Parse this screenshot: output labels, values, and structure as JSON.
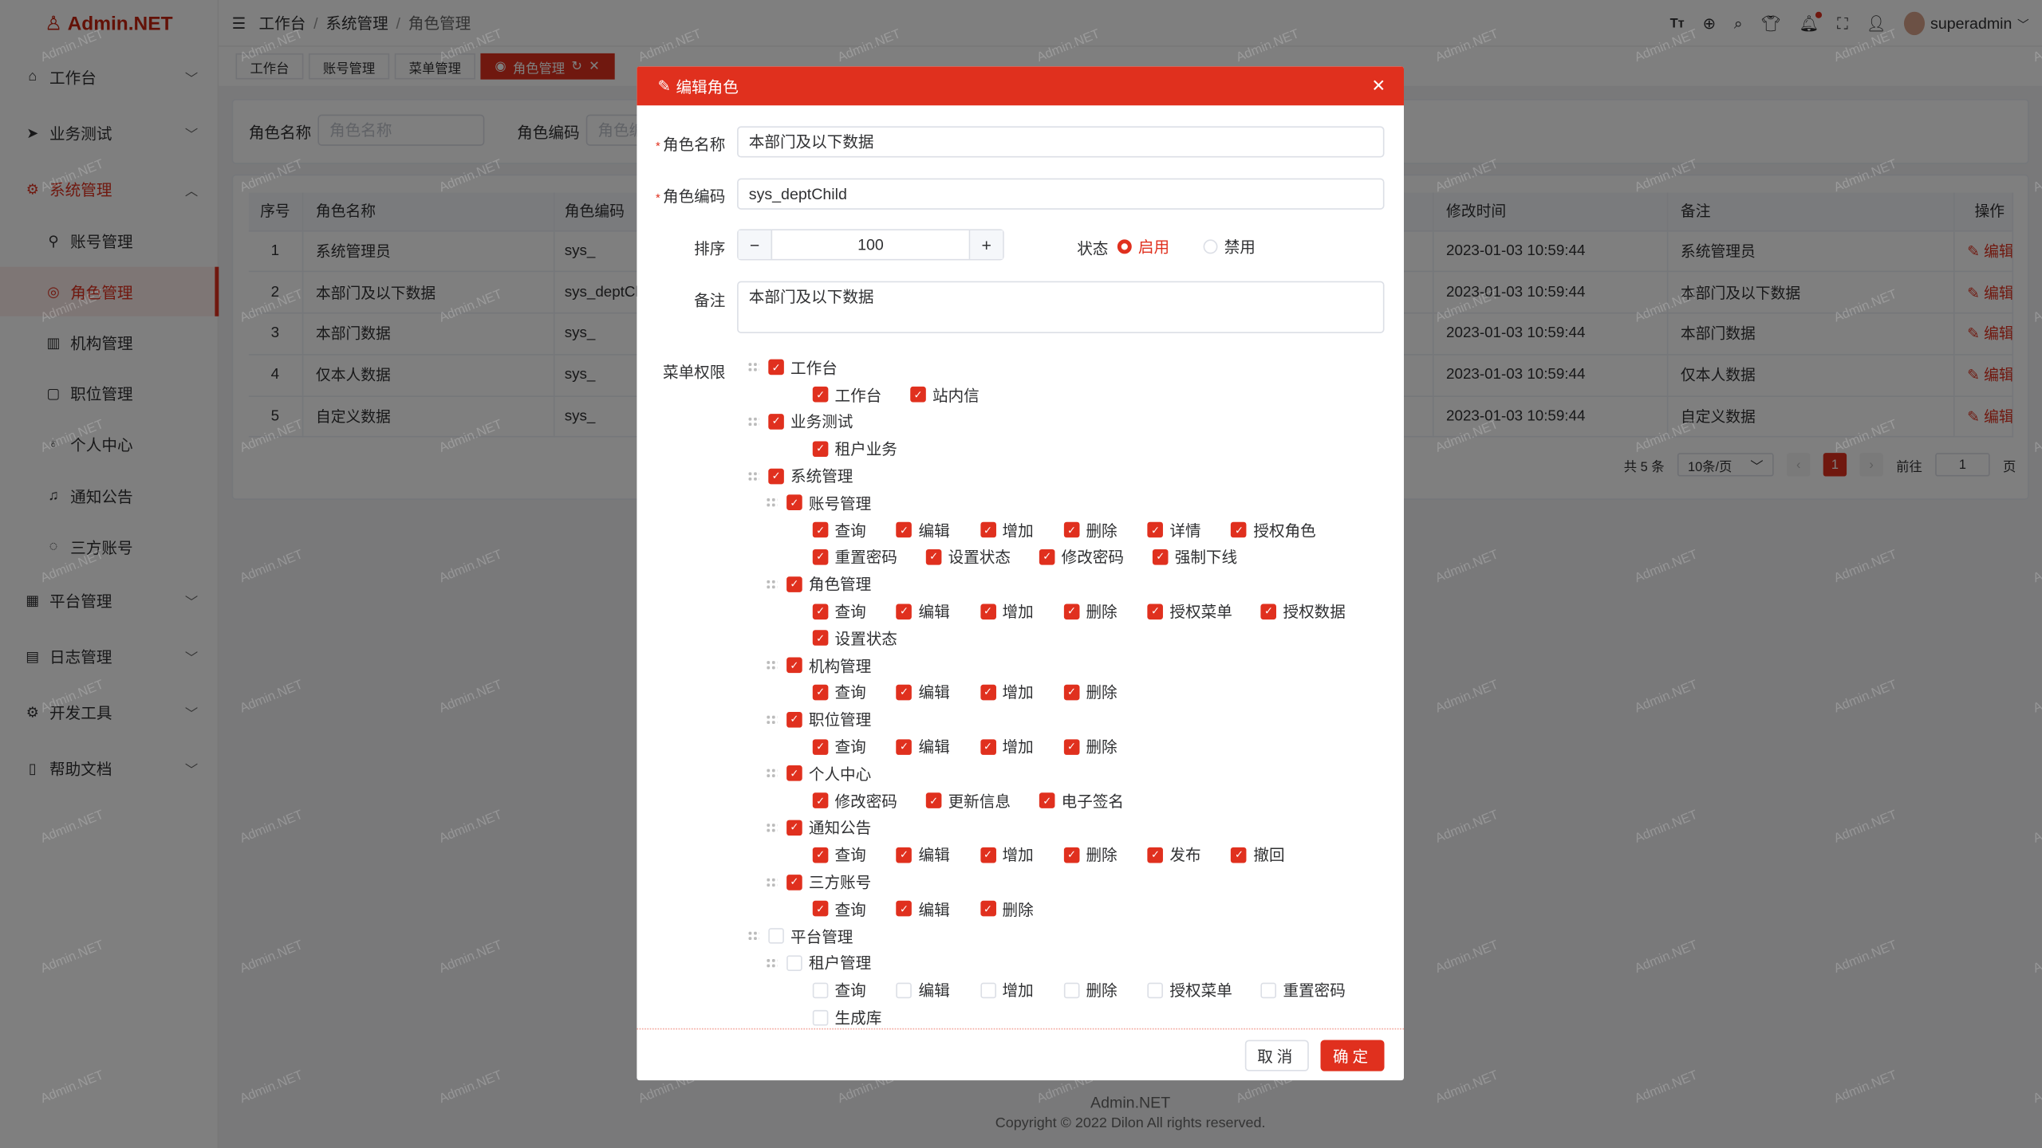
{
  "watermark": "Admin.NET",
  "colors": {
    "accent": "#e0301e"
  },
  "app": {
    "logo_text": "Admin.NET",
    "user": "superadmin"
  },
  "sidebar": {
    "items": [
      {
        "label": "工作台",
        "icon": "home-icon"
      },
      {
        "label": "业务测试",
        "icon": "send-icon"
      },
      {
        "label": "系统管理",
        "icon": "gear-icon",
        "expanded": true
      }
    ],
    "children": [
      "账号管理",
      "角色管理",
      "机构管理",
      "职位管理",
      "个人中心",
      "通知公告",
      "三方账号"
    ],
    "bottom": [
      "平台管理",
      "日志管理",
      "开发工具",
      "帮助文档"
    ]
  },
  "breadcrumb": [
    "工作台",
    "系统管理",
    "角色管理"
  ],
  "header_icons": [
    "font-size-icon",
    "language-icon",
    "search-icon",
    "skin-icon",
    "bell-icon",
    "fullscreen-icon",
    "user-icon"
  ],
  "tabs": [
    "工作台",
    "账号管理",
    "菜单管理",
    "角色管理"
  ],
  "search": {
    "name_label": "角色名称",
    "name_placeholder": "角色名称",
    "code_label": "角色编码",
    "code_placeholder": "角色编码"
  },
  "table": {
    "headers": [
      "序号",
      "角色名称",
      "角色编码",
      "修改时间",
      "备注",
      "操作"
    ],
    "rows": [
      [
        "1",
        "系统管理员",
        "sys_",
        "2023-01-03 10:59:44",
        "系统管理员"
      ],
      [
        "2",
        "本部门及以下数据",
        "sys_deptChild",
        "2023-01-03 10:59:44",
        "本部门及以下数据"
      ],
      [
        "3",
        "本部门数据",
        "sys_",
        "2023-01-03 10:59:44",
        "本部门数据"
      ],
      [
        "4",
        "仅本人数据",
        "sys_",
        "2023-01-03 10:59:44",
        "仅本人数据"
      ],
      [
        "5",
        "自定义数据",
        "sys_",
        "2023-01-03 10:59:44",
        "自定义数据"
      ]
    ],
    "edit_label": "编辑",
    "more_label": "···"
  },
  "pager": {
    "total": "共 5 条",
    "size": "10条/页",
    "current": "1",
    "goto": "前往",
    "goto_value": "1",
    "page_suffix": "页"
  },
  "footer": {
    "brand": "Admin.NET",
    "copyright": "Copyright © 2022 Dilon All rights reserved."
  },
  "dialog": {
    "title": "编辑角色",
    "name_label": "角色名称",
    "name_value": "本部门及以下数据",
    "code_label": "角色编码",
    "code_value": "sys_deptChild",
    "order_label": "排序",
    "order_value": "100",
    "status_label": "状态",
    "status_options": [
      "启用",
      "禁用"
    ],
    "status_selected": "启用",
    "remark_label": "备注",
    "remark_value": "本部门及以下数据",
    "perm_label": "菜单权限",
    "tree": [
      {
        "lv": 0,
        "label": "工作台",
        "on": true
      },
      {
        "lv": 2,
        "items": [
          "工作台",
          "站内信"
        ],
        "on": true
      },
      {
        "lv": 0,
        "label": "业务测试",
        "on": true
      },
      {
        "lv": 2,
        "items": [
          "租户业务"
        ],
        "on": true
      },
      {
        "lv": 0,
        "label": "系统管理",
        "on": true
      },
      {
        "lv": 1,
        "label": "账号管理",
        "on": true
      },
      {
        "lv": 2,
        "items": [
          "查询",
          "编辑",
          "增加",
          "删除",
          "详情",
          "授权角色"
        ],
        "on": true
      },
      {
        "lv": 2,
        "items": [
          "重置密码",
          "设置状态",
          "修改密码",
          "强制下线"
        ],
        "on": true
      },
      {
        "lv": 1,
        "label": "角色管理",
        "on": true
      },
      {
        "lv": 2,
        "items": [
          "查询",
          "编辑",
          "增加",
          "删除",
          "授权菜单",
          "授权数据"
        ],
        "on": true
      },
      {
        "lv": 2,
        "items": [
          "设置状态"
        ],
        "on": true
      },
      {
        "lv": 1,
        "label": "机构管理",
        "on": true
      },
      {
        "lv": 2,
        "items": [
          "查询",
          "编辑",
          "增加",
          "删除"
        ],
        "on": true
      },
      {
        "lv": 1,
        "label": "职位管理",
        "on": true
      },
      {
        "lv": 2,
        "items": [
          "查询",
          "编辑",
          "增加",
          "删除"
        ],
        "on": true
      },
      {
        "lv": 1,
        "label": "个人中心",
        "on": true
      },
      {
        "lv": 2,
        "items": [
          "修改密码",
          "更新信息",
          "电子签名"
        ],
        "on": true
      },
      {
        "lv": 1,
        "label": "通知公告",
        "on": true
      },
      {
        "lv": 2,
        "items": [
          "查询",
          "编辑",
          "增加",
          "删除",
          "发布",
          "撤回"
        ],
        "on": true
      },
      {
        "lv": 1,
        "label": "三方账号",
        "on": true
      },
      {
        "lv": 2,
        "items": [
          "查询",
          "编辑",
          "删除"
        ],
        "on": true
      },
      {
        "lv": 0,
        "label": "平台管理",
        "on": false
      },
      {
        "lv": 1,
        "label": "租户管理",
        "on": false
      },
      {
        "lv": 2,
        "items": [
          "查询",
          "编辑",
          "增加",
          "删除",
          "授权菜单",
          "重置密码"
        ],
        "on": false
      },
      {
        "lv": 2,
        "items": [
          "生成库"
        ],
        "on": false
      }
    ],
    "cancel_label": "取消",
    "ok_label": "确定"
  }
}
